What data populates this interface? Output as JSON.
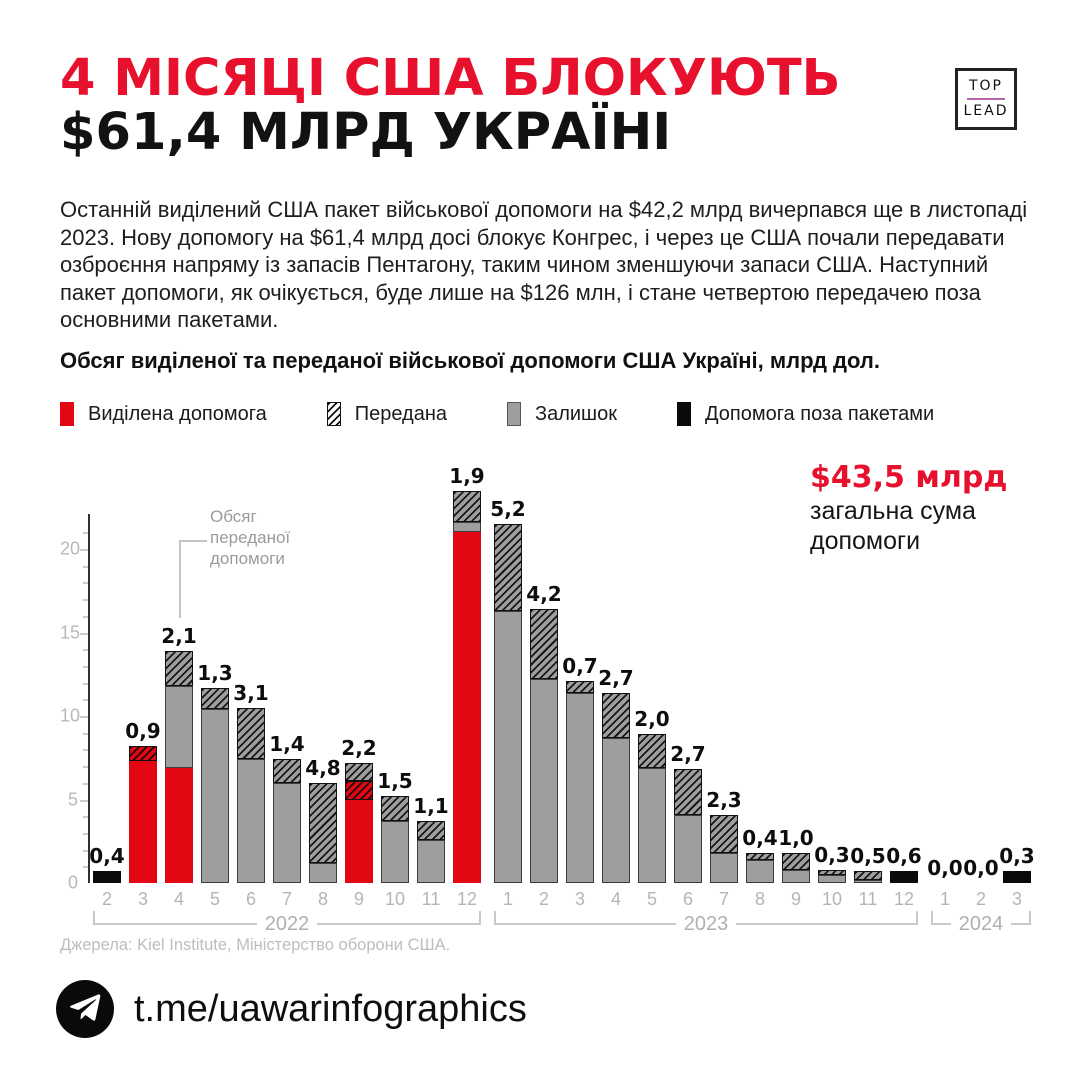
{
  "header": {
    "title_line1": "4 МІСЯЦІ США БЛОКУЮТЬ",
    "title_line2": "$61,4 МЛРД УКРАЇНІ",
    "logo_top": "TOP",
    "logo_bottom": "LEAD"
  },
  "intro": "Останній виділений США пакет військової допомоги на $42,2 млрд вичерпався ще в листопаді 2023. Нову допомогу на $61,4 млрд досі блокує Конгрес, і через це США почали передавати озброєння напряму із запасів Пентагону, таким чином зменшуючи запаси США. Наступний пакет допомоги, як очікується, буде лише на $126 млн, і стане четвертою передачею поза основними пакетами.",
  "chart_heading": "Обсяг виділеної та переданої військової допомоги США Україні, млрд дол.",
  "colors": {
    "accent_red": "#e8112d",
    "bar_red": "#e30613",
    "bar_gray": "#9e9e9e",
    "bar_black": "#0a0a0a",
    "logo_line": "#b565a7"
  },
  "legend": [
    {
      "label": "Виділена допомога",
      "type": "allocated"
    },
    {
      "label": "Передана",
      "type": "transferred"
    },
    {
      "label": "Залишок",
      "type": "remainder"
    },
    {
      "label": "Допомога поза пакетами",
      "type": "outside"
    }
  ],
  "chart_data": {
    "type": "bar",
    "stacked": true,
    "unit": "млрд дол.",
    "yticks": [
      0,
      5,
      10,
      15,
      20
    ],
    "ylim": [
      0,
      23.5
    ],
    "grid": false,
    "annotation_transferred": "Обсяг переданої допомоги",
    "annotation_total": {
      "value": "$43,5 млрд",
      "caption": "загальна сума допомоги"
    },
    "groups": [
      {
        "year": "2022",
        "bars": [
          {
            "month": "2",
            "label": "0,4",
            "segments": [
              {
                "type": "outside",
                "value": 0.4
              }
            ]
          },
          {
            "month": "3",
            "label": "0,9",
            "segments": [
              {
                "type": "allocated",
                "value": 7.3
              },
              {
                "type": "transferred-red",
                "value": 0.9
              }
            ]
          },
          {
            "month": "4",
            "label": "2,1",
            "segments": [
              {
                "type": "allocated",
                "value": 6.9
              },
              {
                "type": "remainder",
                "value": 4.9
              },
              {
                "type": "transferred",
                "value": 2.1
              }
            ]
          },
          {
            "month": "5",
            "label": "1,3",
            "segments": [
              {
                "type": "remainder",
                "value": 10.4
              },
              {
                "type": "transferred",
                "value": 1.3
              }
            ]
          },
          {
            "month": "6",
            "label": "3,1",
            "segments": [
              {
                "type": "remainder",
                "value": 7.4
              },
              {
                "type": "transferred",
                "value": 3.1
              }
            ]
          },
          {
            "month": "7",
            "label": "1,4",
            "segments": [
              {
                "type": "remainder",
                "value": 6.0
              },
              {
                "type": "transferred",
                "value": 1.4
              }
            ]
          },
          {
            "month": "8",
            "label": "4,8",
            "segments": [
              {
                "type": "remainder",
                "value": 1.2
              },
              {
                "type": "transferred",
                "value": 4.8
              }
            ]
          },
          {
            "month": "9",
            "label": "2,2",
            "segments": [
              {
                "type": "allocated",
                "value": 5.0
              },
              {
                "type": "transferred-red",
                "value": 1.1
              },
              {
                "type": "transferred",
                "value": 1.1
              }
            ]
          },
          {
            "month": "10",
            "label": "1,5",
            "segments": [
              {
                "type": "remainder",
                "value": 3.7
              },
              {
                "type": "transferred",
                "value": 1.5
              }
            ]
          },
          {
            "month": "11",
            "label": "1,1",
            "segments": [
              {
                "type": "remainder",
                "value": 2.6
              },
              {
                "type": "transferred",
                "value": 1.1
              }
            ]
          },
          {
            "month": "12",
            "label": "1,9",
            "segments": [
              {
                "type": "allocated",
                "value": 21.0
              },
              {
                "type": "remainder",
                "value": 0.6
              },
              {
                "type": "transferred",
                "value": 1.9
              }
            ]
          }
        ]
      },
      {
        "year": "2023",
        "bars": [
          {
            "month": "1",
            "label": "5,2",
            "segments": [
              {
                "type": "remainder",
                "value": 16.3
              },
              {
                "type": "transferred",
                "value": 5.2
              }
            ]
          },
          {
            "month": "2",
            "label": "4,2",
            "segments": [
              {
                "type": "remainder",
                "value": 12.2
              },
              {
                "type": "transferred",
                "value": 4.2
              }
            ]
          },
          {
            "month": "3",
            "label": "0,7",
            "segments": [
              {
                "type": "remainder",
                "value": 11.4
              },
              {
                "type": "transferred",
                "value": 0.7
              }
            ]
          },
          {
            "month": "4",
            "label": "2,7",
            "segments": [
              {
                "type": "remainder",
                "value": 8.7
              },
              {
                "type": "transferred",
                "value": 2.7
              }
            ]
          },
          {
            "month": "5",
            "label": "2,0",
            "segments": [
              {
                "type": "remainder",
                "value": 6.9
              },
              {
                "type": "transferred",
                "value": 2.0
              }
            ]
          },
          {
            "month": "6",
            "label": "2,7",
            "segments": [
              {
                "type": "remainder",
                "value": 4.1
              },
              {
                "type": "transferred",
                "value": 2.7
              }
            ]
          },
          {
            "month": "7",
            "label": "2,3",
            "segments": [
              {
                "type": "remainder",
                "value": 1.8
              },
              {
                "type": "transferred",
                "value": 2.3
              }
            ]
          },
          {
            "month": "8",
            "label": "0,4",
            "segments": [
              {
                "type": "remainder",
                "value": 1.4
              },
              {
                "type": "transferred",
                "value": 0.4
              }
            ]
          },
          {
            "month": "9",
            "label": "1,0",
            "segments": [
              {
                "type": "remainder",
                "value": 0.8
              },
              {
                "type": "transferred",
                "value": 1.0
              }
            ]
          },
          {
            "month": "10",
            "label": "0,3",
            "segments": [
              {
                "type": "remainder",
                "value": 0.5
              },
              {
                "type": "transferred",
                "value": 0.3
              }
            ]
          },
          {
            "month": "11",
            "label": "0,5",
            "segments": [
              {
                "type": "remainder",
                "value": 0.2
              },
              {
                "type": "transferred",
                "value": 0.5
              }
            ]
          },
          {
            "month": "12",
            "label": "0,6",
            "segments": [
              {
                "type": "outside",
                "value": 0.6
              }
            ]
          }
        ]
      },
      {
        "year": "2024",
        "bars": [
          {
            "month": "1",
            "label": "0,0",
            "segments": []
          },
          {
            "month": "2",
            "label": "0,0",
            "segments": []
          },
          {
            "month": "3",
            "label": "0,3",
            "segments": [
              {
                "type": "outside",
                "value": 0.3
              }
            ]
          }
        ]
      }
    ]
  },
  "source": "Джерела: Kiel Institute, Міністерство оборони США.",
  "footer": {
    "handle": "t.me/uawarinfographics"
  }
}
